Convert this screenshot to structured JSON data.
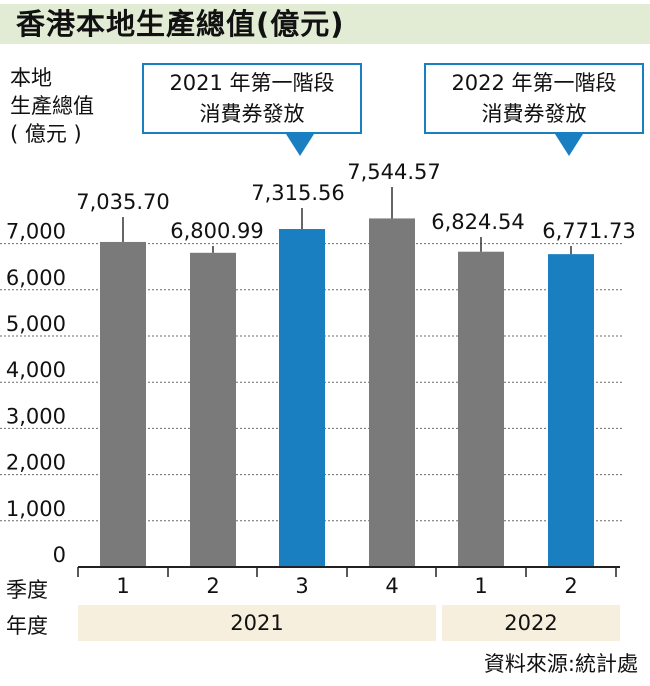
{
  "title": "香港本地生產總值(億元)",
  "y_label": "本地\n生產總值\n( 億元 )",
  "callouts": [
    {
      "line1": "2021 年第一階段",
      "line2": "消費券發放"
    },
    {
      "line1": "2022 年第一階段",
      "line2": "消費券發放"
    }
  ],
  "row_labels": {
    "quarter": "季度",
    "year": "年度"
  },
  "source": "資料來源:統計處",
  "colors": {
    "normal": "#7a7a7a",
    "highlight": "#1a7fc1",
    "title_band": "#e2ecd5",
    "year_band": "#f6efdd"
  },
  "chart_data": {
    "type": "bar",
    "title": "香港本地生產總值(億元)",
    "ylabel": "本地生產總值(億元)",
    "xlabel": "",
    "ylim": [
      0,
      7000
    ],
    "yticks": [
      0,
      1000,
      2000,
      3000,
      4000,
      5000,
      6000,
      7000
    ],
    "ytick_labels": [
      "0",
      "1,000",
      "2,000",
      "3,000",
      "4,000",
      "5,000",
      "6,000",
      "7,000"
    ],
    "grid": true,
    "categories": [
      "1",
      "2",
      "3",
      "4",
      "1",
      "2"
    ],
    "year_groups": [
      {
        "label": "2021",
        "count": 4
      },
      {
        "label": "2022",
        "count": 2
      }
    ],
    "values": [
      7035.7,
      6800.99,
      7315.56,
      7544.57,
      6824.54,
      6771.73
    ],
    "value_labels": [
      "7,035.70",
      "6,800.99",
      "7,315.56",
      "7,544.57",
      "6,824.54",
      "6,771.73"
    ],
    "highlighted": [
      false,
      false,
      true,
      false,
      false,
      true
    ]
  }
}
